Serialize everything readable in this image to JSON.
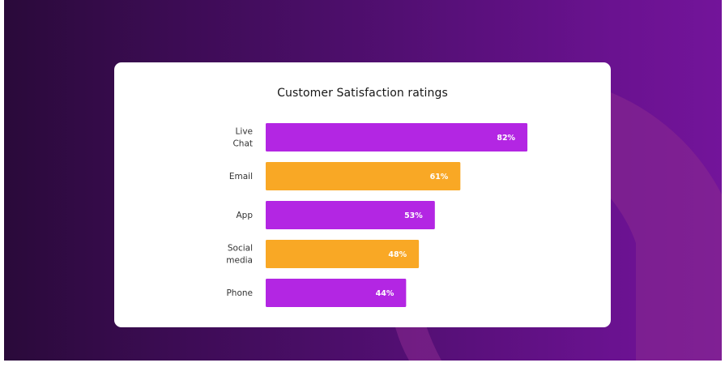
{
  "colors": {
    "background_dark": "#2a0a3a",
    "background_light": "#73149a",
    "purple_bar": "#b326e3",
    "orange_bar": "#f9a825",
    "card": "#ffffff"
  },
  "chart_data": {
    "type": "bar",
    "orientation": "horizontal",
    "title": "Customer Satisfaction ratings",
    "categories": [
      "Live Chat",
      "Email",
      "App",
      "Social media",
      "Phone"
    ],
    "category_lines": [
      [
        "Live",
        "Chat"
      ],
      [
        "Email"
      ],
      [
        "App"
      ],
      [
        "Social",
        "media"
      ],
      [
        "Phone"
      ]
    ],
    "values": [
      82,
      61,
      53,
      48,
      44
    ],
    "value_labels": [
      "82%",
      "61%",
      "53%",
      "48%",
      "44%"
    ],
    "bar_colors": [
      "#b326e3",
      "#f9a825",
      "#b326e3",
      "#f9a825",
      "#b326e3"
    ],
    "xlim": [
      0,
      100
    ],
    "xlabel": "",
    "ylabel": "",
    "grid": false,
    "legend": "none"
  }
}
